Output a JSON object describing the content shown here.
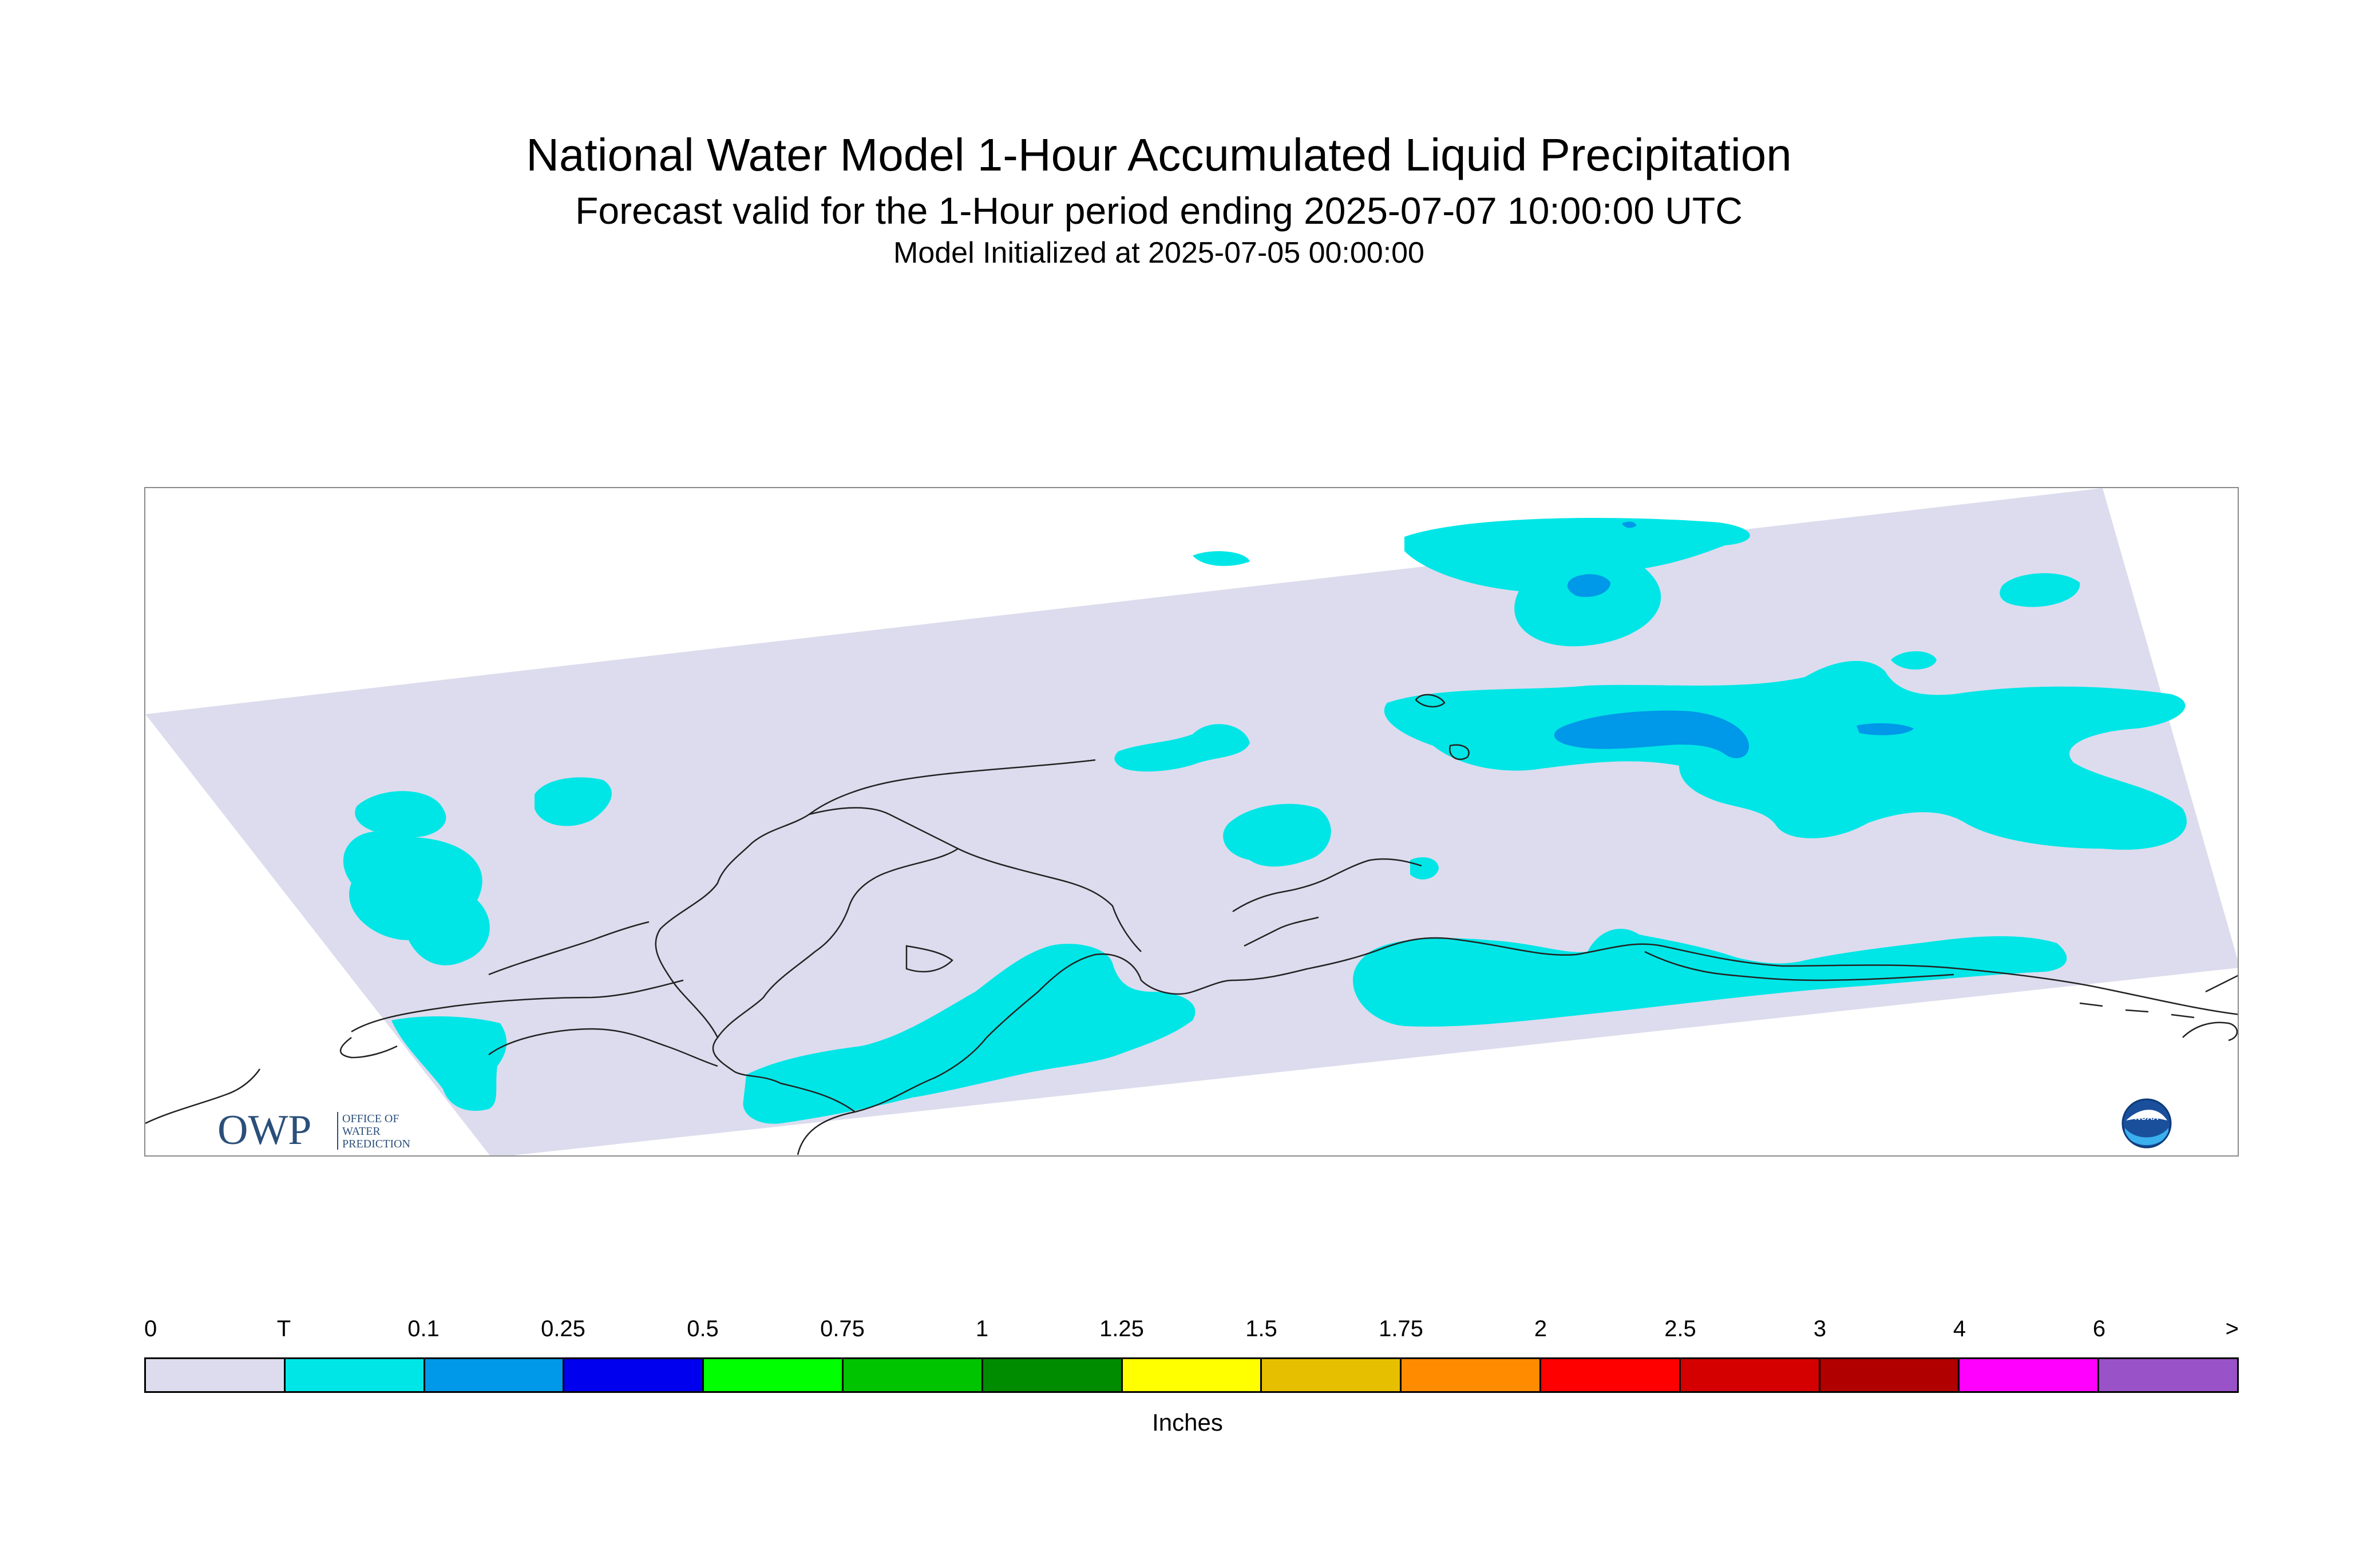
{
  "header": {
    "title": "National Water Model 1-Hour Accumulated Liquid Precipitation",
    "subtitle": "Forecast valid for the 1-Hour period ending 2025-07-07 10:00:00 UTC",
    "init": "Model Initialized at 2025-07-05 00:00:00"
  },
  "logos": {
    "owp": {
      "name": "owp-logo",
      "big_text": "OWP",
      "small_text": [
        "OFFICE OF",
        "WATER",
        "PREDICTION"
      ]
    },
    "noaa": {
      "name": "noaa-logo",
      "text": "NOAA"
    }
  },
  "colors": {
    "domain": "#dcdcee",
    "trace": "#00e6e6",
    "light_blue": "#0098e8",
    "coast": "#222222"
  },
  "legend": {
    "units": "Inches",
    "tick_labels": [
      "0",
      "T",
      "0.1",
      "0.25",
      "0.5",
      "0.75",
      "1",
      "1.25",
      "1.5",
      "1.75",
      "2",
      "2.5",
      "3",
      "4",
      "6",
      ">"
    ],
    "colors": [
      "#dcdcee",
      "#00e6e6",
      "#0098e8",
      "#0000ee",
      "#00ff00",
      "#00c400",
      "#008c00",
      "#ffff00",
      "#e6c000",
      "#ff8c00",
      "#ff0000",
      "#d40000",
      "#b00000",
      "#ff00ff",
      "#9a52c8"
    ]
  }
}
